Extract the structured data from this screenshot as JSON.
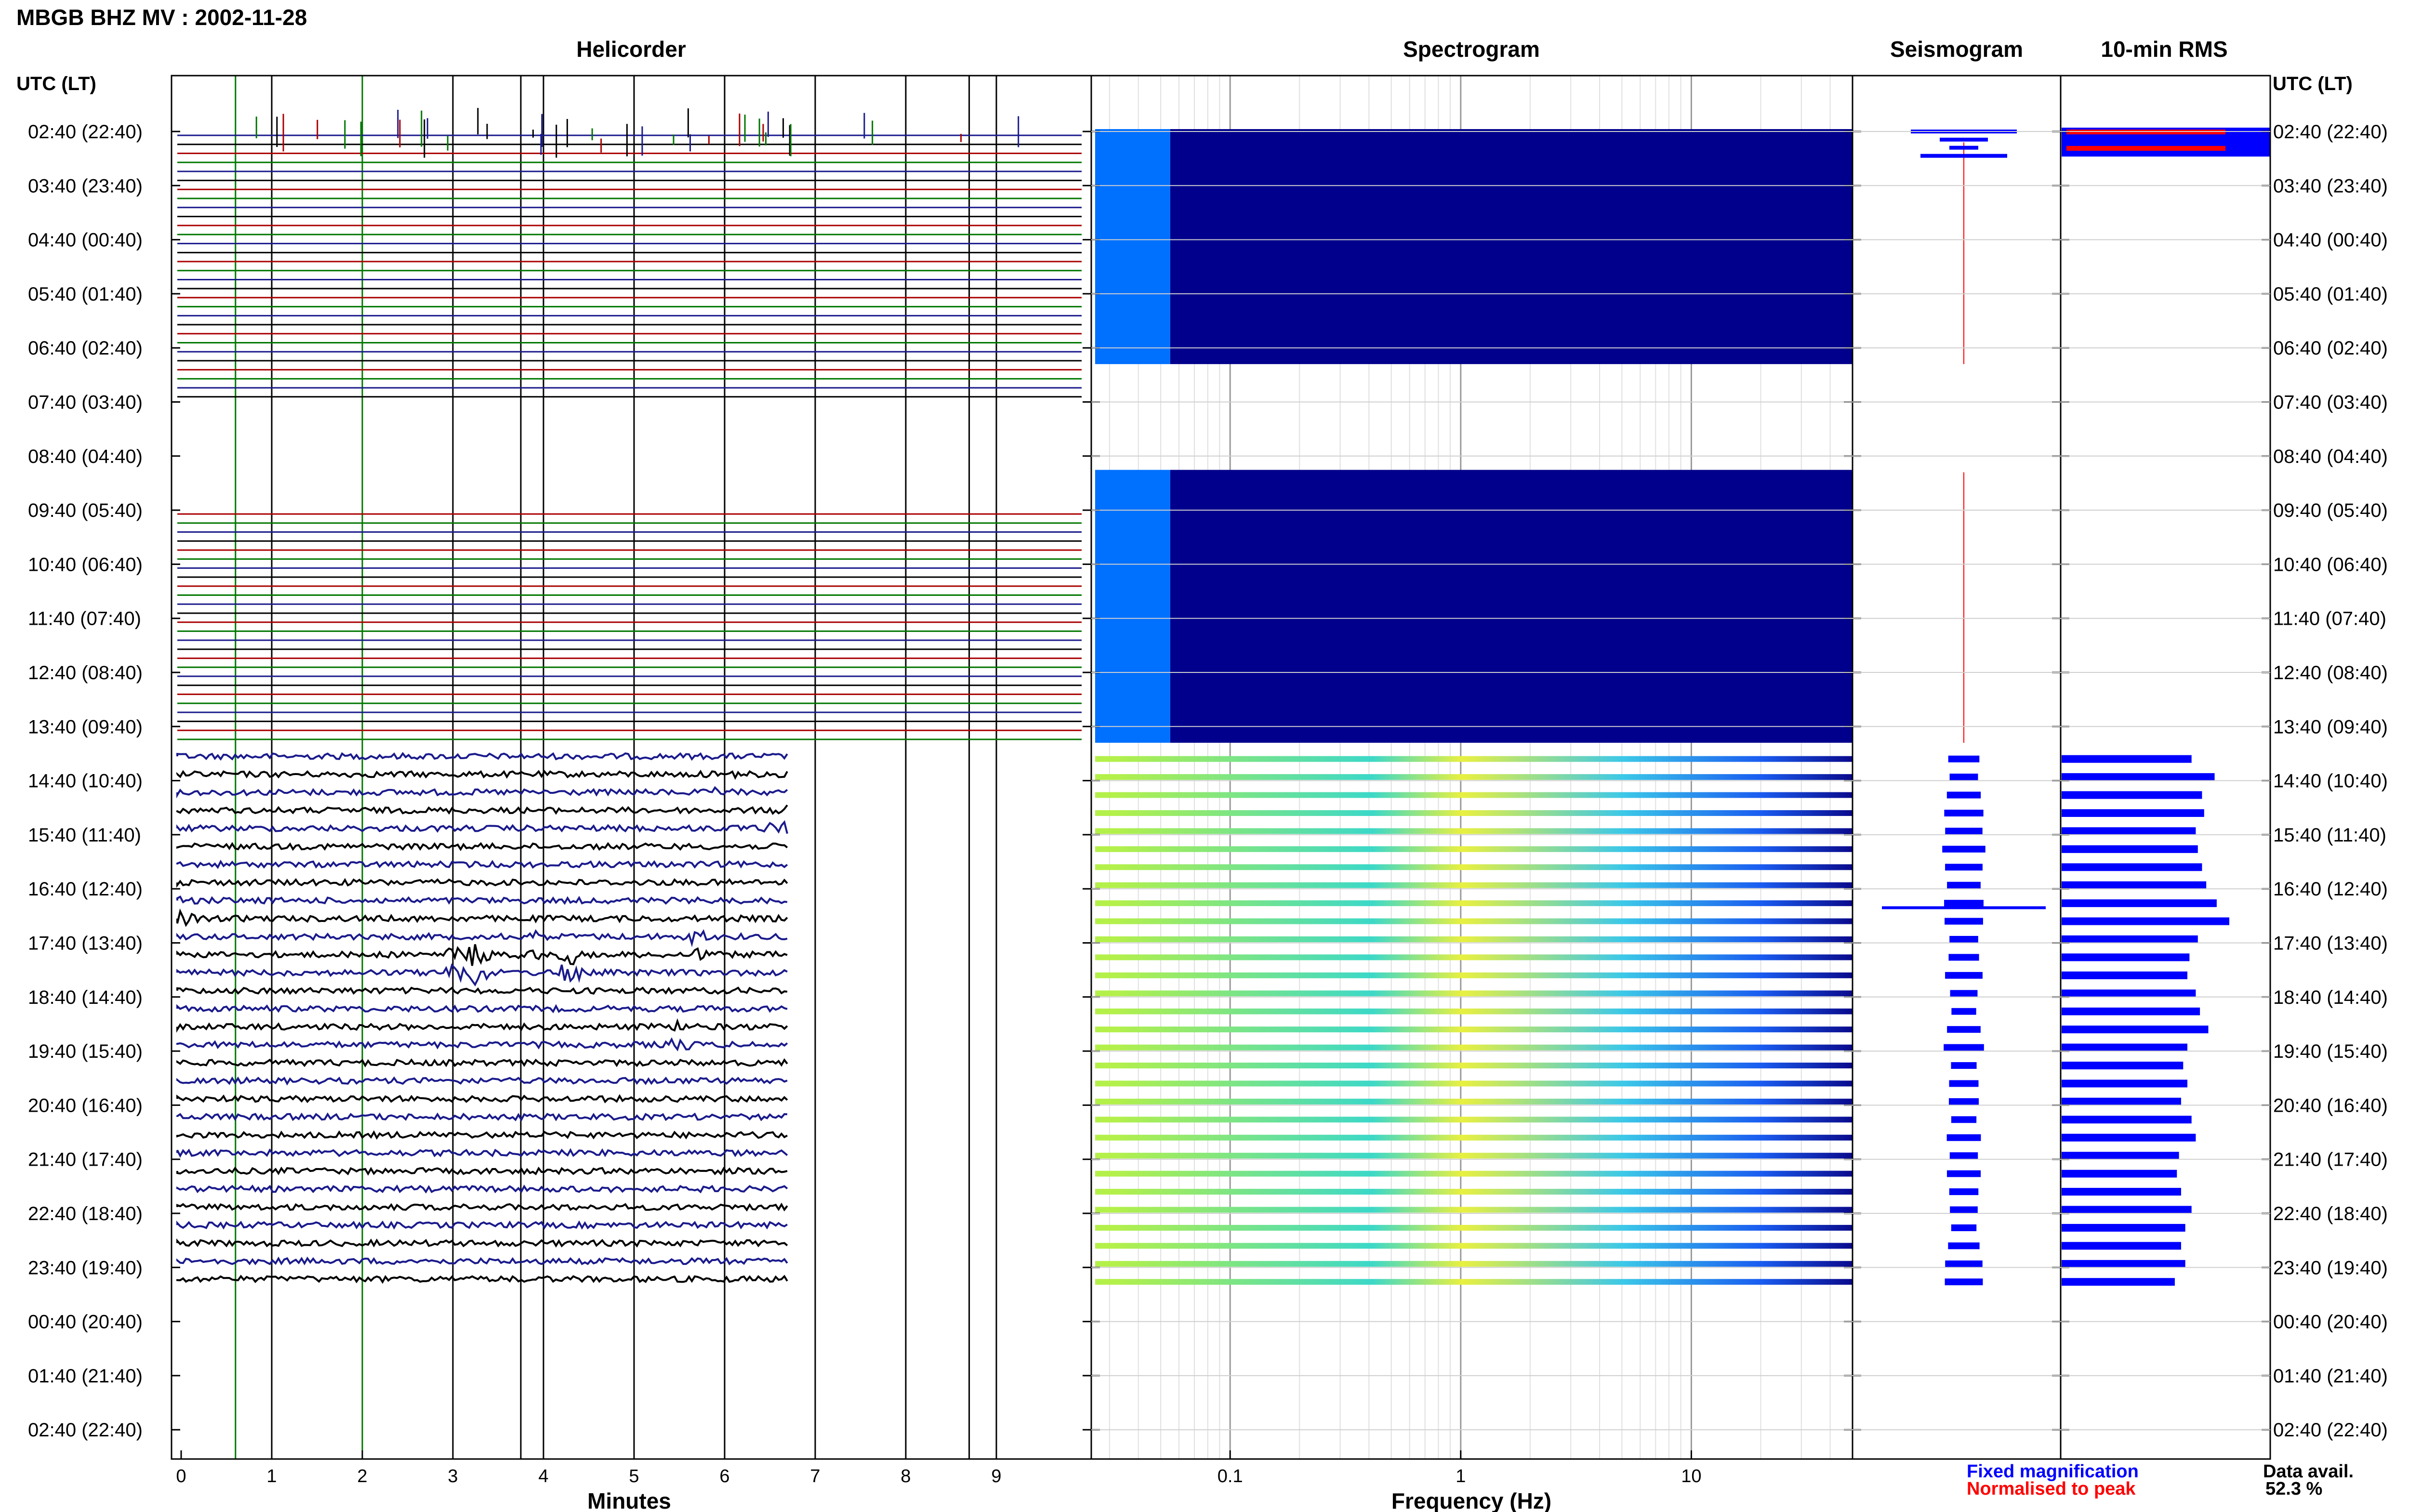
{
  "figure": {
    "title": "MBGB BHZ MV : 2002-11-28",
    "utc_lt_label": "UTC (LT)"
  },
  "panels": {
    "helicorder": "Helicorder",
    "spectrogram": "Spectrogram",
    "seismogram": "Seismogram",
    "rms": "10-min RMS"
  },
  "colors": {
    "trace_black": "#000000",
    "trace_blue": "#1a1a8c",
    "trace_red": "#aa0000",
    "trace_green": "#007700",
    "spec_dark": "#00008c",
    "spec_light": "#0070ff",
    "fixed_mag": "#0000ff",
    "normalised": "#ff0000"
  },
  "chart_data": {
    "type": "heatmap",
    "title": "MBGB BHZ MV : 2002-11-28",
    "rows": [
      {
        "utc": "02:40",
        "lt": "22:40"
      },
      {
        "utc": "03:40",
        "lt": "23:40"
      },
      {
        "utc": "04:40",
        "lt": "00:40"
      },
      {
        "utc": "05:40",
        "lt": "01:40"
      },
      {
        "utc": "06:40",
        "lt": "02:40"
      },
      {
        "utc": "07:40",
        "lt": "03:40"
      },
      {
        "utc": "08:40",
        "lt": "04:40"
      },
      {
        "utc": "09:40",
        "lt": "05:40"
      },
      {
        "utc": "10:40",
        "lt": "06:40"
      },
      {
        "utc": "11:40",
        "lt": "07:40"
      },
      {
        "utc": "12:40",
        "lt": "08:40"
      },
      {
        "utc": "13:40",
        "lt": "09:40"
      },
      {
        "utc": "14:40",
        "lt": "10:40"
      },
      {
        "utc": "15:40",
        "lt": "11:40"
      },
      {
        "utc": "16:40",
        "lt": "12:40"
      },
      {
        "utc": "17:40",
        "lt": "13:40"
      },
      {
        "utc": "18:40",
        "lt": "14:40"
      },
      {
        "utc": "19:40",
        "lt": "15:40"
      },
      {
        "utc": "20:40",
        "lt": "16:40"
      },
      {
        "utc": "21:40",
        "lt": "17:40"
      },
      {
        "utc": "22:40",
        "lt": "18:40"
      },
      {
        "utc": "23:40",
        "lt": "19:40"
      },
      {
        "utc": "00:40",
        "lt": "20:40"
      },
      {
        "utc": "01:40",
        "lt": "21:40"
      },
      {
        "utc": "02:40",
        "lt": "22:40"
      }
    ],
    "helicorder": {
      "xlabel": "Minutes",
      "xticks": [
        "0",
        "1",
        "2",
        "3",
        "4",
        "5",
        "6",
        "7",
        "8",
        "9"
      ],
      "xlim": [
        0,
        10
      ],
      "lines_per_hour": 6,
      "active_data_end_min": 6.7,
      "marker_lines_min": [
        0.6,
        1.0,
        2.0,
        3.0,
        3.75,
        4.0,
        5.0,
        6.0,
        7.0,
        8.0,
        8.7,
        9.0
      ],
      "events": [
        {
          "hour": 15,
          "line": 1,
          "minute": 4.3,
          "amp": 24
        },
        {
          "hour": 15,
          "line": 1,
          "minute": 3.25,
          "amp": 28
        },
        {
          "hour": 14,
          "line": 4,
          "minute": 3.0,
          "amp": 18
        },
        {
          "hour": 14,
          "line": 3,
          "minute": 3.9,
          "amp": 16
        },
        {
          "hour": 15,
          "line": 0,
          "minute": 5.7,
          "amp": 18
        },
        {
          "hour": 16,
          "line": 2,
          "minute": 5.5,
          "amp": 14
        },
        {
          "hour": 12,
          "line": 2,
          "minute": 6.6,
          "amp": 14
        },
        {
          "hour": 14,
          "line": 1,
          "minute": 0.05,
          "amp": 14
        },
        {
          "hour": 12,
          "line": 0,
          "minute": 6.0,
          "amp": 10
        }
      ]
    },
    "spectrogram": {
      "xlabel": "Frequency (Hz)",
      "xscale": "log",
      "xlim": [
        0.025,
        50
      ],
      "xticks": [
        0.1,
        1,
        10
      ],
      "xtick_labels": [
        "0.1",
        "1",
        "10"
      ],
      "data_blocks": [
        {
          "from_hour": 0,
          "to_hour": 4.3
        },
        {
          "from_hour": 6.3,
          "to_hour": 11.3
        }
      ]
    },
    "seismogram": {
      "legend": [
        {
          "name": "Fixed magnification",
          "color": "#0000ff"
        },
        {
          "name": "Normalised to peak",
          "color": "#ff0000"
        }
      ]
    },
    "rms": {
      "unit": "relative",
      "values": [
        0.62,
        0.73,
        0.67,
        0.68,
        0.64,
        0.65,
        0.67,
        0.69,
        0.74,
        0.8,
        0.65,
        0.61,
        0.6,
        0.64,
        0.66,
        0.7,
        0.6,
        0.58,
        0.6,
        0.57,
        0.62,
        0.64,
        0.56,
        0.55,
        0.57,
        0.62,
        0.59,
        0.57,
        0.59,
        0.54
      ]
    },
    "data_availability": {
      "label": "Data avail.",
      "value": "52.3 %"
    }
  }
}
